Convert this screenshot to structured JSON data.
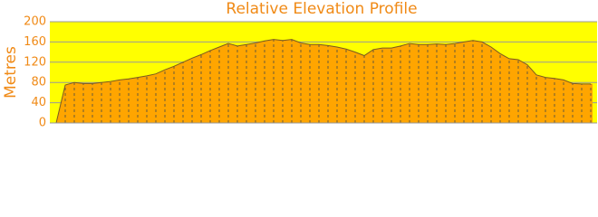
{
  "chart_data": {
    "type": "area",
    "title": "Relative Elevation Profile",
    "y_label": "Metres",
    "values": [
      0,
      75,
      80,
      78,
      78,
      80,
      82,
      85,
      87,
      90,
      93,
      97,
      105,
      112,
      120,
      128,
      135,
      143,
      150,
      157,
      152,
      155,
      158,
      162,
      165,
      163,
      165,
      158,
      155,
      155,
      153,
      150,
      146,
      140,
      133,
      145,
      148,
      148,
      152,
      157,
      155,
      155,
      156,
      155,
      157,
      160,
      163,
      160,
      150,
      137,
      127,
      125,
      115,
      95,
      90,
      88,
      85,
      78,
      77,
      77
    ],
    "color": "#ffa500",
    "background": "#ffff00",
    "ylim": [
      0,
      200
    ],
    "yticks": [
      0,
      40,
      80,
      120,
      160,
      200
    ],
    "grid": true
  }
}
